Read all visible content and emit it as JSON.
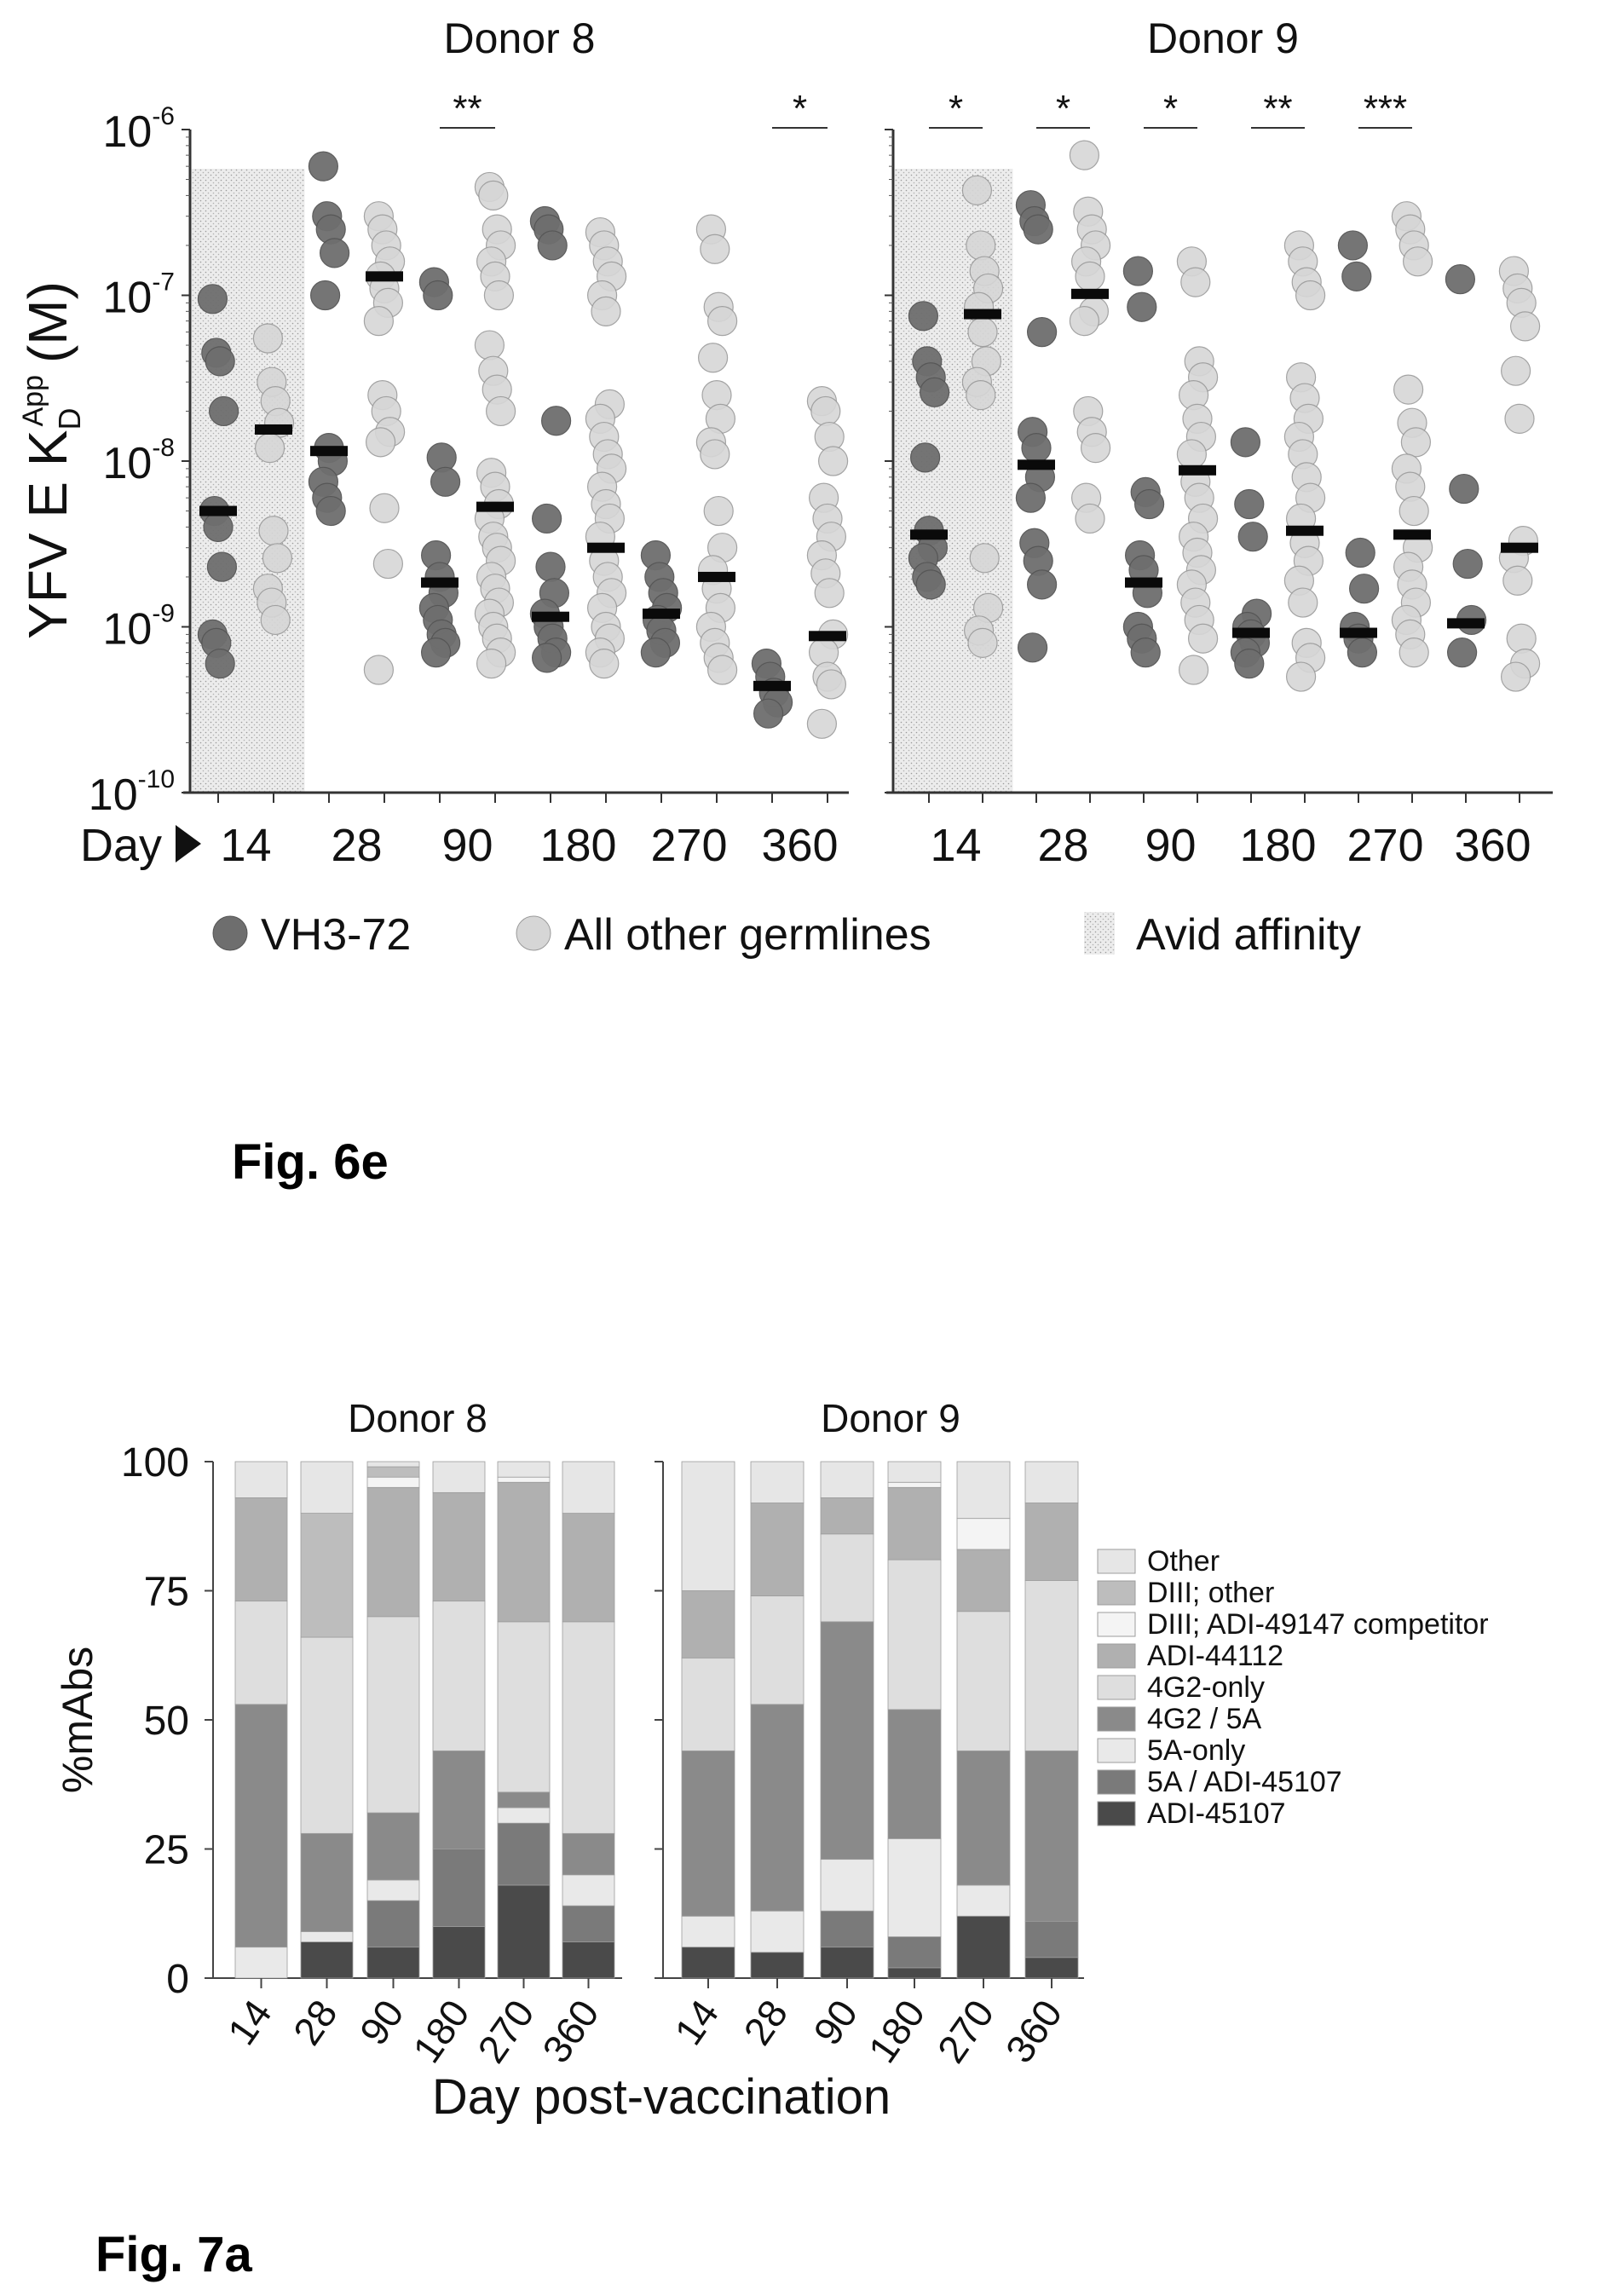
{
  "figures": [
    {
      "caption": "Fig. 6e"
    },
    {
      "caption": "Fig. 7a"
    }
  ],
  "chart_data": [
    {
      "type": "scatter",
      "id": "fig6e",
      "ylabel_main": "YFV E K",
      "ylabel_sub": "D",
      "ylabel_sup": "App",
      "ylabel_unit": "(M)",
      "yscale": "log",
      "ylim": [
        1e-10,
        1e-06
      ],
      "ytick_labels": [
        {
          "base": "10",
          "exp": "-6",
          "value": 1e-06
        },
        {
          "base": "10",
          "exp": "-7",
          "value": 1e-07
        },
        {
          "base": "10",
          "exp": "-8",
          "value": 1e-08
        },
        {
          "base": "10",
          "exp": "-9",
          "value": 1e-09
        },
        {
          "base": "10",
          "exp": "-10",
          "value": 1e-10
        }
      ],
      "xaxis_prefix": "Day",
      "categories": [
        "14",
        "28",
        "90",
        "180",
        "270",
        "360"
      ],
      "legend": [
        {
          "label": "VH3-72",
          "kind": "dark-dot",
          "color": "#6e6e6e"
        },
        {
          "label": "All other germlines",
          "kind": "light-dot",
          "color": "#d6d6d6"
        },
        {
          "label": "Avid affinity",
          "kind": "shade",
          "color": "#e2e2e2"
        }
      ],
      "avid_affinity_threshold": 5.8e-07,
      "avid_affinity_days": [
        "14"
      ],
      "panels": [
        {
          "title": "Donor 8",
          "significance": [
            {
              "day": "90",
              "label": "**"
            },
            {
              "day": "360",
              "label": "*"
            }
          ],
          "series": [
            {
              "day": "14",
              "group": "VH3-72",
              "median": 5e-09,
              "values": [
                9.5e-08,
                4.5e-08,
                4e-08,
                2e-08,
                5e-09,
                4e-09,
                2.3e-09,
                9e-10,
                8e-10,
                6e-10
              ]
            },
            {
              "day": "14",
              "group": "All other germlines",
              "median": 1.55e-08,
              "values": [
                5.5e-08,
                3e-08,
                2.3e-08,
                1.7e-08,
                1.2e-08,
                3.8e-09,
                2.6e-09,
                1.7e-09,
                1.4e-09,
                1.1e-09
              ]
            },
            {
              "day": "28",
              "group": "VH3-72",
              "median": 1.15e-08,
              "values": [
                6e-07,
                3e-07,
                2.5e-07,
                1.8e-07,
                1e-07,
                1.2e-08,
                1e-08,
                7.5e-09,
                6e-09,
                5e-09
              ]
            },
            {
              "day": "28",
              "group": "All other germlines",
              "median": 1.3e-07,
              "values": [
                3e-07,
                2.5e-07,
                2e-07,
                1.6e-07,
                1.3e-07,
                1.1e-07,
                9e-08,
                7e-08,
                2.5e-08,
                2e-08,
                1.5e-08,
                1.3e-08,
                5.2e-09,
                2.4e-09,
                5.5e-10
              ]
            },
            {
              "day": "90",
              "group": "VH3-72",
              "median": 1.85e-09,
              "values": [
                1.2e-07,
                1e-07,
                1.05e-08,
                7.5e-09,
                2.7e-09,
                2e-09,
                1.6e-09,
                1.3e-09,
                1.1e-09,
                9e-10,
                8e-10,
                7e-10
              ]
            },
            {
              "day": "90",
              "group": "All other germlines",
              "median": 5.3e-09,
              "values": [
                4.5e-07,
                4e-07,
                2.5e-07,
                2e-07,
                1.6e-07,
                1.3e-07,
                1e-07,
                5e-08,
                3.5e-08,
                2.7e-08,
                2e-08,
                8.5e-09,
                7e-09,
                5.5e-09,
                4.5e-09,
                3.5e-09,
                3e-09,
                2.5e-09,
                2e-09,
                1.7e-09,
                1.4e-09,
                1.2e-09,
                1e-09,
                8.5e-10,
                7e-10,
                6e-10
              ]
            },
            {
              "day": "180",
              "group": "VH3-72",
              "median": 1.15e-09,
              "values": [
                2.8e-07,
                2.5e-07,
                2e-07,
                1.75e-08,
                4.5e-09,
                2.3e-09,
                1.6e-09,
                1.2e-09,
                1e-09,
                8.5e-10,
                7e-10,
                6.5e-10
              ]
            },
            {
              "day": "180",
              "group": "All other germlines",
              "median": 3e-09,
              "values": [
                2.4e-07,
                2e-07,
                1.6e-07,
                1.3e-07,
                1e-07,
                8e-08,
                2.2e-08,
                1.8e-08,
                1.4e-08,
                1.1e-08,
                9e-09,
                7e-09,
                5.5e-09,
                4.5e-09,
                3.5e-09,
                2.5e-09,
                2e-09,
                1.6e-09,
                1.3e-09,
                1e-09,
                8.5e-10,
                7e-10,
                6e-10
              ]
            },
            {
              "day": "270",
              "group": "VH3-72",
              "median": 1.2e-09,
              "values": [
                2.7e-09,
                2e-09,
                1.6e-09,
                1.3e-09,
                1.1e-09,
                9.5e-10,
                8e-10,
                7e-10
              ]
            },
            {
              "day": "270",
              "group": "All other germlines",
              "median": 2e-09,
              "values": [
                2.5e-07,
                1.9e-07,
                8.5e-08,
                7e-08,
                4.2e-08,
                2.5e-08,
                1.8e-08,
                1.3e-08,
                1.1e-08,
                5e-09,
                3e-09,
                2.2e-09,
                1.7e-09,
                1.3e-09,
                1e-09,
                8e-10,
                6.5e-10,
                5.5e-10
              ]
            },
            {
              "day": "360",
              "group": "VH3-72",
              "median": 4.4e-10,
              "values": [
                6e-10,
                5e-10,
                4e-10,
                3.5e-10,
                3e-10
              ]
            },
            {
              "day": "360",
              "group": "All other germlines",
              "median": 8.8e-10,
              "values": [
                2.3e-08,
                2e-08,
                1.4e-08,
                1e-08,
                6e-09,
                4.5e-09,
                3.5e-09,
                2.7e-09,
                2.1e-09,
                1.6e-09,
                9e-10,
                7e-10,
                5e-10,
                4.5e-10,
                2.6e-10
              ]
            }
          ]
        },
        {
          "title": "Donor 9",
          "significance": [
            {
              "day": "14",
              "label": "*"
            },
            {
              "day": "28",
              "label": "*"
            },
            {
              "day": "90",
              "label": "*"
            },
            {
              "day": "180",
              "label": "**"
            },
            {
              "day": "270",
              "label": "***"
            }
          ],
          "series": [
            {
              "day": "14",
              "group": "VH3-72",
              "median": 3.6e-09,
              "values": [
                7.5e-08,
                4e-08,
                3.2e-08,
                2.6e-08,
                1.05e-08,
                3.8e-09,
                3e-09,
                2.6e-09,
                2e-09,
                1.8e-09
              ]
            },
            {
              "day": "14",
              "group": "All other germlines",
              "median": 7.7e-08,
              "values": [
                4.3e-07,
                2e-07,
                1.4e-07,
                1.1e-07,
                8.5e-08,
                6e-08,
                4e-08,
                3e-08,
                2.5e-08,
                2.6e-09,
                1.3e-09,
                9.5e-10,
                8e-10
              ]
            },
            {
              "day": "28",
              "group": "VH3-72",
              "median": 9.5e-09,
              "values": [
                3.5e-07,
                2.8e-07,
                2.5e-07,
                6e-08,
                1.5e-08,
                1.2e-08,
                8e-09,
                6e-09,
                3.2e-09,
                2.5e-09,
                1.8e-09,
                7.5e-10
              ]
            },
            {
              "day": "28",
              "group": "All other germlines",
              "median": 1.02e-07,
              "values": [
                7e-07,
                3.2e-07,
                2.5e-07,
                2e-07,
                1.6e-07,
                1.3e-07,
                8e-08,
                7e-08,
                2e-08,
                1.5e-08,
                1.2e-08,
                6e-09,
                4.5e-09
              ]
            },
            {
              "day": "90",
              "group": "VH3-72",
              "median": 1.85e-09,
              "values": [
                1.4e-07,
                8.5e-08,
                6.5e-09,
                5.5e-09,
                2.7e-09,
                2.2e-09,
                1.6e-09,
                1e-09,
                8.5e-10,
                7e-10
              ]
            },
            {
              "day": "90",
              "group": "All other germlines",
              "median": 8.8e-09,
              "values": [
                1.6e-07,
                1.2e-07,
                4e-08,
                3.2e-08,
                2.5e-08,
                1.8e-08,
                1.4e-08,
                1.1e-08,
                7.5e-09,
                6e-09,
                4.5e-09,
                3.5e-09,
                2.8e-09,
                2.2e-09,
                1.8e-09,
                1.4e-09,
                1.1e-09,
                8.5e-10,
                5.5e-10
              ]
            },
            {
              "day": "180",
              "group": "VH3-72",
              "median": 9.2e-10,
              "values": [
                1.3e-08,
                5.5e-09,
                3.5e-09,
                1.2e-09,
                1e-09,
                9e-10,
                8e-10,
                7e-10,
                6e-10
              ]
            },
            {
              "day": "180",
              "group": "All other germlines",
              "median": 3.8e-09,
              "values": [
                2e-07,
                1.6e-07,
                1.2e-07,
                1e-07,
                3.2e-08,
                2.4e-08,
                1.8e-08,
                1.4e-08,
                1.1e-08,
                8e-09,
                6e-09,
                4.5e-09,
                3.2e-09,
                2.5e-09,
                1.9e-09,
                1.4e-09,
                8e-10,
                6.5e-10,
                5e-10
              ]
            },
            {
              "day": "270",
              "group": "VH3-72",
              "median": 9.2e-10,
              "values": [
                2e-07,
                1.3e-07,
                2.8e-09,
                1.7e-09,
                1e-09,
                8.5e-10,
                7e-10
              ]
            },
            {
              "day": "270",
              "group": "All other germlines",
              "median": 3.6e-09,
              "values": [
                3e-07,
                2.5e-07,
                2e-07,
                1.6e-07,
                2.7e-08,
                1.7e-08,
                1.3e-08,
                9e-09,
                7e-09,
                5e-09,
                3e-09,
                2.3e-09,
                1.8e-09,
                1.4e-09,
                1.1e-09,
                9e-10,
                7e-10
              ]
            },
            {
              "day": "360",
              "group": "VH3-72",
              "median": 1.05e-09,
              "values": [
                1.25e-07,
                6.8e-09,
                2.4e-09,
                1.1e-09,
                7e-10
              ]
            },
            {
              "day": "360",
              "group": "All other germlines",
              "median": 3e-09,
              "values": [
                1.4e-07,
                1.1e-07,
                9e-08,
                6.5e-08,
                3.5e-08,
                1.8e-08,
                3.3e-09,
                2.6e-09,
                1.9e-09,
                8.5e-10,
                6e-10,
                5e-10
              ]
            }
          ]
        }
      ]
    },
    {
      "type": "bar",
      "id": "fig7a",
      "stacked": true,
      "ylabel": "%mAbs",
      "xlabel": "Day post-vaccination",
      "ylim": [
        0,
        100
      ],
      "yticks": [
        0,
        25,
        50,
        75,
        100
      ],
      "categories": [
        "14",
        "28",
        "90",
        "180",
        "270",
        "360"
      ],
      "legend_position": "right",
      "legend": [
        {
          "label": "Other",
          "tone": "#e6e6e6"
        },
        {
          "label": "DIII; other",
          "tone": "#bdbdbd"
        },
        {
          "label": "DIII; ADI-49147 competitor",
          "tone": "#f4f4f4"
        },
        {
          "label": "ADI-44112",
          "tone": "#b0b0b0"
        },
        {
          "label": "4G2-only",
          "tone": "#dedede"
        },
        {
          "label": "4G2 / 5A",
          "tone": "#8a8a8a"
        },
        {
          "label": "5A-only",
          "tone": "#e9e9e9"
        },
        {
          "label": "5A / ADI-45107",
          "tone": "#7a7a7a"
        },
        {
          "label": "ADI-45107",
          "tone": "#4a4a4a"
        }
      ],
      "stack_order_bottom_to_top": [
        "ADI-45107",
        "5A / ADI-45107",
        "5A-only",
        "4G2 / 5A",
        "4G2-only",
        "ADI-44112",
        "DIII; ADI-49147 competitor",
        "DIII; other",
        "Other"
      ],
      "panels": [
        {
          "title": "Donor 8",
          "series": [
            {
              "name": "ADI-45107",
              "values": [
                0,
                7,
                6,
                10,
                18,
                7
              ]
            },
            {
              "name": "5A / ADI-45107",
              "values": [
                0,
                0,
                9,
                15,
                12,
                7
              ]
            },
            {
              "name": "5A-only",
              "values": [
                6,
                2,
                4,
                0,
                3,
                6
              ]
            },
            {
              "name": "4G2 / 5A",
              "values": [
                47,
                19,
                13,
                19,
                3,
                8
              ]
            },
            {
              "name": "4G2-only",
              "values": [
                20,
                38,
                38,
                29,
                33,
                41
              ]
            },
            {
              "name": "ADI-44112",
              "values": [
                20,
                0,
                25,
                21,
                27,
                21
              ]
            },
            {
              "name": "DIII; ADI-49147 competitor",
              "values": [
                0,
                0,
                2,
                0,
                1,
                0
              ]
            },
            {
              "name": "DIII; other",
              "values": [
                0,
                24,
                2,
                0,
                0,
                0
              ]
            },
            {
              "name": "Other",
              "values": [
                7,
                10,
                1,
                6,
                3,
                10
              ]
            }
          ]
        },
        {
          "title": "Donor 9",
          "series": [
            {
              "name": "ADI-45107",
              "values": [
                6,
                5,
                6,
                2,
                12,
                4
              ]
            },
            {
              "name": "5A / ADI-45107",
              "values": [
                0,
                0,
                7,
                6,
                0,
                7
              ]
            },
            {
              "name": "5A-only",
              "values": [
                6,
                8,
                10,
                19,
                6,
                0
              ]
            },
            {
              "name": "4G2 / 5A",
              "values": [
                32,
                40,
                46,
                25,
                26,
                33
              ]
            },
            {
              "name": "4G2-only",
              "values": [
                18,
                21,
                17,
                29,
                27,
                33
              ]
            },
            {
              "name": "ADI-44112",
              "values": [
                13,
                18,
                7,
                14,
                12,
                15
              ]
            },
            {
              "name": "DIII; ADI-49147 competitor",
              "values": [
                0,
                0,
                0,
                1,
                6,
                0
              ]
            },
            {
              "name": "DIII; other",
              "values": [
                0,
                0,
                0,
                0,
                0,
                0
              ]
            },
            {
              "name": "Other",
              "values": [
                25,
                8,
                7,
                4,
                11,
                8
              ]
            }
          ]
        }
      ]
    }
  ]
}
